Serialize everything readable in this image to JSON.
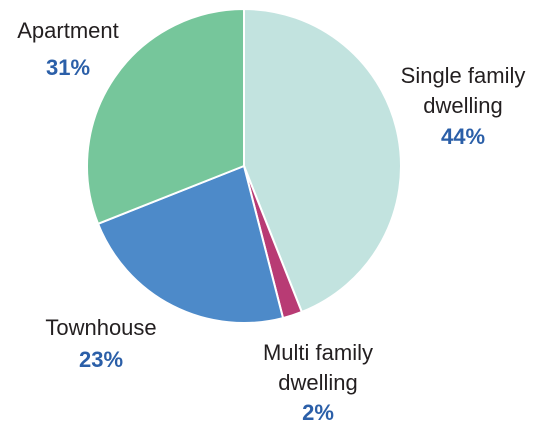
{
  "chart_data": {
    "type": "pie",
    "start_angle_deg": 0,
    "direction": "clockwise",
    "slices": [
      {
        "label": "Single family dwelling",
        "label_lines": [
          "Single family",
          "dwelling"
        ],
        "value": 44,
        "value_label": "44%",
        "color": "#c2e3df"
      },
      {
        "label": "Multi family dwelling",
        "label_lines": [
          "Multi family",
          "dwelling"
        ],
        "value": 2,
        "value_label": "2%",
        "color": "#b83b74"
      },
      {
        "label": "Townhouse",
        "label_lines": [
          "Townhouse"
        ],
        "value": 23,
        "value_label": "23%",
        "color": "#4d8ac9"
      },
      {
        "label": "Apartment",
        "label_lines": [
          "Apartment"
        ],
        "value": 31,
        "value_label": "31%",
        "color": "#76c69b"
      }
    ],
    "percent_label_color": "#2b5fa8"
  }
}
